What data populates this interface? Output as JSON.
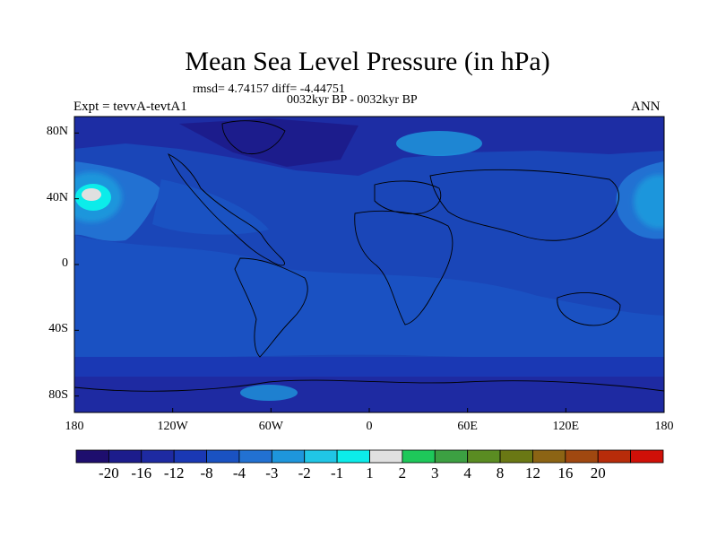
{
  "title": "Mean Sea Level Pressure (in hPa)",
  "stats": "rmsd= 4.74157 diff= -4.44751",
  "period": "0032kyr BP - 0032kyr BP",
  "experiment": "Expt = tevvA-tevtA1",
  "season": "ANN",
  "map": {
    "projection": "cylindrical equidistant",
    "lon_range": [
      -180,
      180
    ],
    "lat_range": [
      -90,
      90
    ],
    "lat_ticks": [
      {
        "value": 80,
        "label": "80N"
      },
      {
        "value": 40,
        "label": "40N"
      },
      {
        "value": 0,
        "label": "0"
      },
      {
        "value": -40,
        "label": "40S"
      },
      {
        "value": -80,
        "label": "80S"
      }
    ],
    "lon_ticks": [
      {
        "value": -180,
        "label": "180"
      },
      {
        "value": -120,
        "label": "120W"
      },
      {
        "value": -60,
        "label": "60W"
      },
      {
        "value": 0,
        "label": "0"
      },
      {
        "value": 60,
        "label": "60E"
      },
      {
        "value": 120,
        "label": "120E"
      },
      {
        "value": 180,
        "label": "180"
      }
    ],
    "background_level_color": "#1a46b8"
  },
  "colorbar": {
    "colors": [
      "#1e0e6e",
      "#1c1c8c",
      "#1e2aa2",
      "#1a38b4",
      "#1a52c2",
      "#2271d2",
      "#1e96dc",
      "#20c6e6",
      "#0cecea",
      "#e0e0e0",
      "#1ec85a",
      "#3ca042",
      "#5a8c22",
      "#6a7814",
      "#8c6414",
      "#a04810",
      "#b82c0a",
      "#d01008"
    ],
    "labels": [
      "-20",
      "-16",
      "-12",
      "-8",
      "-4",
      "-3",
      "-2",
      "-1",
      "1",
      "2",
      "3",
      "4",
      "8",
      "12",
      "16",
      "20"
    ]
  }
}
